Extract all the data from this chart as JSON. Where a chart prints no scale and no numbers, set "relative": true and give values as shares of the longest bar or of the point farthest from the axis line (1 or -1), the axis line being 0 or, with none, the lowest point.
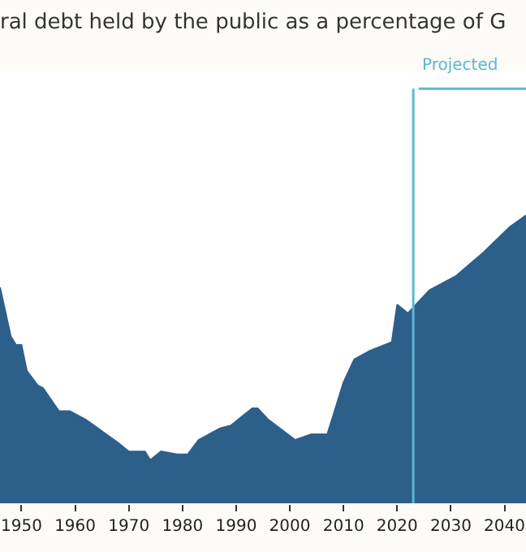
{
  "chart_data": {
    "type": "area",
    "title": "ral debt held by the public as a percentage of G",
    "relative": true,
    "color": "#2d5f8b",
    "x": [
      1946,
      1948,
      1949,
      1950,
      1951,
      1953,
      1954,
      1957,
      1959,
      1962,
      1965,
      1968,
      1970,
      1973,
      1974,
      1976,
      1979,
      1981,
      1983,
      1987,
      1989,
      1993,
      1994,
      1996,
      2001,
      2004,
      2007,
      2010,
      2012,
      2015,
      2019,
      2020,
      2022,
      2026,
      2031,
      2036,
      2041,
      2044
    ],
    "values": [
      0.75,
      0.58,
      0.55,
      0.55,
      0.46,
      0.41,
      0.4,
      0.32,
      0.32,
      0.29,
      0.25,
      0.21,
      0.18,
      0.18,
      0.15,
      0.18,
      0.17,
      0.17,
      0.22,
      0.26,
      0.27,
      0.33,
      0.33,
      0.29,
      0.22,
      0.24,
      0.24,
      0.42,
      0.5,
      0.53,
      0.56,
      0.69,
      0.66,
      0.74,
      0.79,
      0.87,
      0.96,
      1
    ],
    "xlim": [
      1946,
      2044
    ],
    "xticks": [
      1950,
      1960,
      1970,
      1980,
      1990,
      2000,
      2010,
      2020,
      2030,
      2040
    ],
    "ref_lines": [
      {
        "axis": "x",
        "value": 2023,
        "label": "Projected",
        "color": "#5bb8d0"
      }
    ]
  }
}
